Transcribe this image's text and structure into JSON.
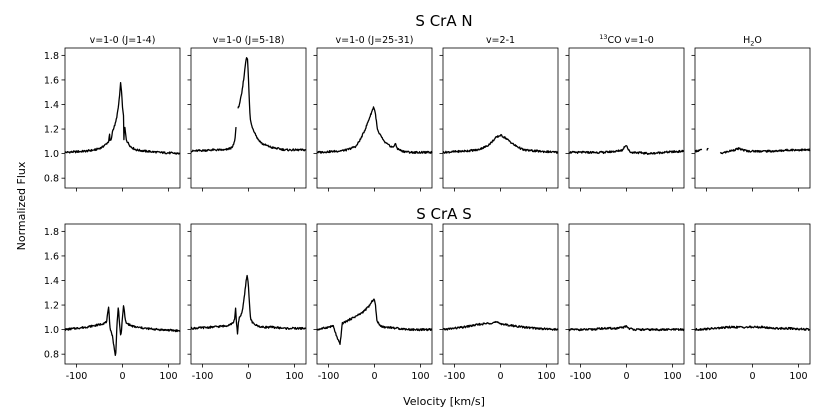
{
  "figure": {
    "row_titles": [
      "S CrA N",
      "S CrA S"
    ],
    "xlabel": "Velocity [km/s]",
    "ylabel": "Normalized Flux"
  },
  "chart_data": {
    "type": "line",
    "xlim": [
      -125,
      125
    ],
    "ylim": [
      0.72,
      1.86
    ],
    "xticks": [
      -100,
      0,
      100
    ],
    "yticks": [
      0.8,
      1.0,
      1.2,
      1.4,
      1.6,
      1.8
    ],
    "xtick_labels": [
      "-100",
      "0",
      "100"
    ],
    "ytick_labels": [
      "0.8",
      "1.0",
      "1.2",
      "1.4",
      "1.6",
      "1.8"
    ],
    "panel_titles": [
      "v=1-0 (J=1-4)",
      "v=1-0 (J=5-18)",
      "v=1-0 (J=25-31)",
      "v=2-1",
      "CO v=1-0",
      "H2O"
    ],
    "panel_title_isotope": "13",
    "series": [
      {
        "name": "S CrA N v=1-0 (J=1-4)",
        "x": [
          -125,
          -80,
          -60,
          -45,
          -35,
          -30,
          -28,
          -27,
          -24,
          -22,
          -20,
          -15,
          -10,
          -6,
          -4,
          -2,
          0,
          2,
          3,
          4,
          5,
          6,
          7,
          8,
          10,
          15,
          20,
          30,
          50,
          80,
          125
        ],
        "y": [
          1.01,
          1.02,
          1.03,
          1.05,
          1.08,
          1.1,
          1.16,
          1.1,
          1.12,
          1.18,
          1.2,
          1.25,
          1.35,
          1.48,
          1.58,
          1.5,
          1.38,
          1.32,
          1.1,
          1.2,
          1.22,
          1.18,
          1.15,
          1.12,
          1.1,
          1.07,
          1.05,
          1.03,
          1.02,
          1.01,
          1.0
        ]
      },
      {
        "name": "S CrA N v=1-0 (J=5-18)",
        "x": [
          -125,
          -80,
          -50,
          -35,
          -30,
          -28,
          -27,
          -25,
          -23,
          -20,
          -15,
          -10,
          -6,
          -4,
          -2,
          0,
          2,
          4,
          6,
          8,
          10,
          15,
          20,
          30,
          50,
          80,
          125
        ],
        "y": [
          1.02,
          1.03,
          1.03,
          1.05,
          1.1,
          1.18,
          1.22,
          null,
          1.36,
          1.4,
          1.48,
          1.62,
          1.75,
          1.79,
          1.77,
          1.6,
          1.4,
          1.28,
          1.24,
          1.22,
          1.2,
          1.16,
          1.12,
          1.08,
          1.05,
          1.03,
          1.03
        ]
      },
      {
        "name": "S CrA N v=1-0 (J=25-31)",
        "x": [
          -125,
          -80,
          -60,
          -40,
          -30,
          -20,
          -15,
          -10,
          -5,
          -2,
          0,
          3,
          6,
          10,
          15,
          20,
          30,
          40,
          45,
          50,
          60,
          80,
          125
        ],
        "y": [
          1.01,
          1.02,
          1.03,
          1.06,
          1.12,
          1.2,
          1.25,
          1.3,
          1.35,
          1.38,
          1.36,
          1.3,
          1.2,
          1.16,
          1.14,
          1.1,
          1.07,
          1.05,
          1.08,
          1.04,
          1.02,
          1.01,
          1.01
        ]
      },
      {
        "name": "S CrA N v=2-1",
        "x": [
          -125,
          -80,
          -50,
          -30,
          -20,
          -10,
          0,
          10,
          20,
          30,
          50,
          80,
          125
        ],
        "y": [
          1.01,
          1.02,
          1.03,
          1.06,
          1.09,
          1.13,
          1.15,
          1.13,
          1.1,
          1.07,
          1.03,
          1.02,
          1.01
        ]
      },
      {
        "name": "S CrA N 13CO v=1-0",
        "x": [
          -125,
          -80,
          -50,
          -20,
          -8,
          -4,
          0,
          3,
          6,
          10,
          20,
          50,
          80,
          125
        ],
        "y": [
          1.01,
          1.01,
          1.01,
          1.02,
          1.03,
          1.06,
          1.07,
          1.04,
          1.02,
          1.01,
          1.01,
          1.0,
          1.01,
          1.02
        ]
      },
      {
        "name": "S CrA N H2O",
        "x": [
          -125,
          -110,
          -105,
          -100,
          -95,
          -85,
          -70,
          -60,
          -50,
          -40,
          -30,
          -20,
          -10,
          0,
          20,
          50,
          80,
          125
        ],
        "y": [
          1.02,
          1.03,
          null,
          1.03,
          1.04,
          null,
          1.0,
          1.01,
          1.02,
          1.03,
          1.04,
          1.03,
          1.02,
          1.02,
          1.02,
          1.02,
          1.03,
          1.03
        ]
      },
      {
        "name": "S CrA S v=1-0 (J=1-4)",
        "x": [
          -125,
          -80,
          -50,
          -35,
          -30,
          -28,
          -26,
          -22,
          -18,
          -15,
          -12,
          -9,
          -6,
          -4,
          -2,
          0,
          2,
          4,
          6,
          8,
          10,
          20,
          30,
          50,
          80,
          125
        ],
        "y": [
          1.0,
          1.02,
          1.04,
          1.06,
          1.18,
          1.05,
          1.0,
          0.95,
          0.85,
          0.77,
          1.05,
          1.19,
          1.02,
          0.95,
          1.0,
          1.1,
          1.2,
          1.15,
          1.08,
          1.05,
          1.05,
          1.03,
          1.02,
          1.01,
          1.0,
          0.99
        ]
      },
      {
        "name": "S CrA S v=1-0 (J=5-18)",
        "x": [
          -125,
          -80,
          -50,
          -35,
          -30,
          -28,
          -26,
          -24,
          -22,
          -20,
          -16,
          -12,
          -8,
          -5,
          -3,
          -1,
          1,
          3,
          5,
          10,
          15,
          20,
          30,
          50,
          80,
          125
        ],
        "y": [
          1.01,
          1.02,
          1.03,
          1.05,
          1.08,
          1.18,
          1.05,
          0.97,
          1.05,
          1.1,
          1.12,
          1.18,
          1.3,
          1.4,
          1.44,
          1.4,
          1.28,
          1.16,
          1.08,
          1.05,
          1.04,
          1.03,
          1.02,
          1.02,
          1.01,
          1.01
        ]
      },
      {
        "name": "S CrA S v=1-0 (J=25-31)",
        "x": [
          -125,
          -100,
          -90,
          -80,
          -75,
          -70,
          -65,
          -60,
          -55,
          -50,
          -40,
          -30,
          -20,
          -10,
          -5,
          -2,
          0,
          2,
          5,
          10,
          20,
          30,
          50,
          80,
          125
        ],
        "y": [
          1.0,
          1.02,
          1.03,
          0.92,
          0.88,
          1.05,
          1.06,
          1.07,
          1.08,
          1.09,
          1.11,
          1.13,
          1.16,
          1.2,
          1.23,
          1.25,
          1.24,
          1.2,
          1.08,
          1.04,
          1.02,
          1.02,
          1.01,
          1.0,
          1.0
        ]
      },
      {
        "name": "S CrA S v=2-1",
        "x": [
          -125,
          -80,
          -50,
          -30,
          -10,
          0,
          10,
          30,
          50,
          80,
          125
        ],
        "y": [
          1.0,
          1.02,
          1.04,
          1.05,
          1.06,
          1.05,
          1.04,
          1.03,
          1.02,
          1.01,
          1.0
        ]
      },
      {
        "name": "S CrA S 13CO v=1-0",
        "x": [
          -125,
          -80,
          -50,
          -20,
          -5,
          0,
          5,
          20,
          50,
          80,
          125
        ],
        "y": [
          1.0,
          1.0,
          1.01,
          1.01,
          1.02,
          1.03,
          1.01,
          1.0,
          1.0,
          1.0,
          1.0
        ]
      },
      {
        "name": "S CrA S H2O",
        "x": [
          -125,
          -80,
          -50,
          -20,
          0,
          20,
          50,
          80,
          125
        ],
        "y": [
          1.0,
          1.01,
          1.02,
          1.02,
          1.02,
          1.02,
          1.01,
          1.01,
          1.0
        ]
      }
    ]
  }
}
